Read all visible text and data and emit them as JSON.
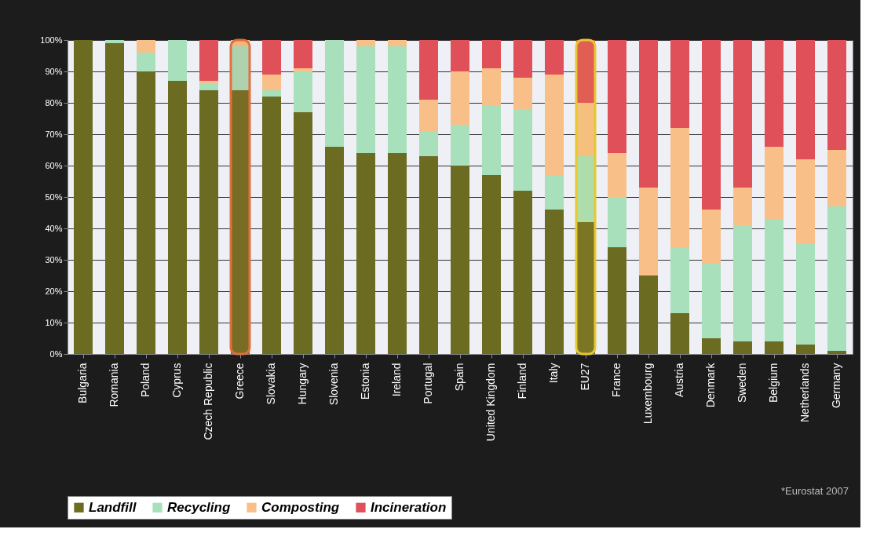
{
  "chart_data": {
    "type": "bar",
    "stacked": true,
    "categories": [
      "Bulgaria",
      "Romania",
      "Poland",
      "Cyprus",
      "Czech Republic",
      "Greece",
      "Slovakia",
      "Hungary",
      "Slovenia",
      "Estonia",
      "Ireland",
      "Portugal",
      "Spain",
      "United Kingdom",
      "Finland",
      "Italy",
      "EU27",
      "France",
      "Luxembourg",
      "Austria",
      "Denmark",
      "Sweden",
      "Belgium",
      "Netherlands",
      "Germany"
    ],
    "series": [
      {
        "name": "Landfill",
        "color": "#6b6b22",
        "values": [
          100,
          99,
          90,
          87,
          84,
          84,
          82,
          77,
          66,
          64,
          64,
          63,
          60,
          57,
          52,
          46,
          42,
          34,
          25,
          13,
          5,
          4,
          4,
          3,
          1
        ]
      },
      {
        "name": "Recycling",
        "color": "#a8e0bc",
        "values": [
          0,
          1,
          6,
          13,
          2,
          14,
          2,
          13,
          34,
          34,
          34,
          8,
          13,
          22,
          26,
          11,
          21,
          16,
          0,
          21,
          24,
          37,
          39,
          32,
          46
        ]
      },
      {
        "name": "Composting",
        "color": "#f8c088",
        "values": [
          0,
          0,
          4,
          0,
          1,
          2,
          5,
          1,
          0,
          2,
          2,
          10,
          17,
          12,
          10,
          32,
          17,
          14,
          28,
          38,
          17,
          12,
          23,
          27,
          18
        ]
      },
      {
        "name": "Incineration",
        "color": "#e05058",
        "values": [
          0,
          0,
          0,
          0,
          13,
          0,
          11,
          9,
          0,
          0,
          0,
          19,
          10,
          9,
          12,
          11,
          20,
          36,
          47,
          28,
          54,
          47,
          34,
          38,
          35
        ]
      }
    ],
    "ylim": [
      0,
      100
    ],
    "yticks": [
      {
        "value": 0,
        "label": "0%"
      },
      {
        "value": 10,
        "label": "10%"
      },
      {
        "value": 20,
        "label": "20%"
      },
      {
        "value": 30,
        "label": "30%"
      },
      {
        "value": 40,
        "label": "40%"
      },
      {
        "value": 50,
        "label": "50%"
      },
      {
        "value": 60,
        "label": "60%"
      },
      {
        "value": 70,
        "label": "70%"
      },
      {
        "value": 80,
        "label": "80%"
      },
      {
        "value": 90,
        "label": "90%"
      },
      {
        "value": 100,
        "label": "100%"
      }
    ],
    "grid": "y",
    "legend": "bottom",
    "bands": [
      {
        "axis": "x",
        "from": "Greece",
        "to": "Greece",
        "color": "#e07040"
      },
      {
        "axis": "x",
        "from": "EU27",
        "to": "EU27",
        "color": "#e8c830"
      }
    ],
    "annotations": [
      "*Eurostat 2007"
    ]
  }
}
